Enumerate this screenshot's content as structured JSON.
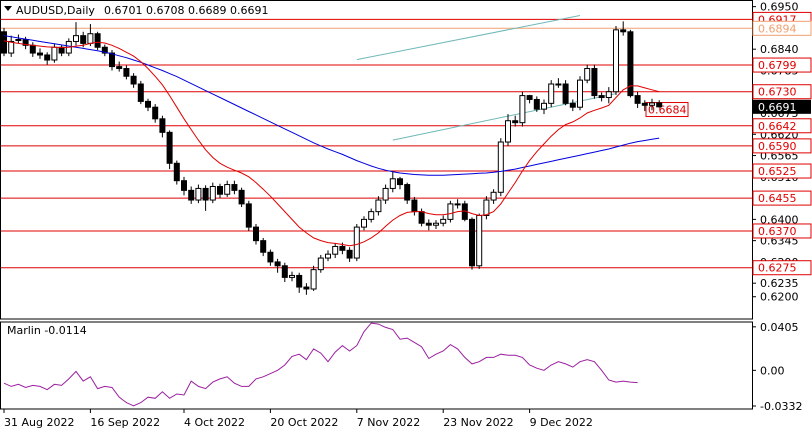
{
  "header": {
    "symbol_label": "AUDUSD,Daily",
    "ohlc_values": "0.6701 0.6708 0.6689 0.6691"
  },
  "colors": {
    "background": "#ffffff",
    "candle_bull": "#ffffff",
    "candle_bear": "#000000",
    "ma_fast": "#e00000",
    "ma_slow": "#0000dd",
    "channel": "#6fb8b8",
    "level_line": "#e00000",
    "price_box": "#000000",
    "oscillator": "#9b1fa0"
  },
  "chart_data": [
    {
      "type": "line",
      "title": "AUDUSD,Daily",
      "subtitle": "0.6701 0.6708 0.6689 0.6691",
      "ylim": [
        0.6145,
        0.6962
      ],
      "y_ticks": [
        "0.6950",
        "0.6895",
        "0.6840",
        "0.6785",
        "0.6730",
        "0.6675",
        "0.6620",
        "0.6565",
        "0.6510",
        "0.6455",
        "0.6400",
        "0.6345",
        "0.6290",
        "0.6235",
        "0.6200"
      ],
      "x_labels": [
        "31 Aug 2022",
        "16 Sep 2022",
        "4 Oct 2022",
        "20 Oct 2022",
        "7 Nov 2022",
        "23 Nov 2022",
        "9 Dec 2022"
      ],
      "x_label_index": [
        0,
        12,
        25,
        37,
        49,
        61,
        73
      ],
      "candles": {
        "open": [
          0.6885,
          0.683,
          0.6865,
          0.6865,
          0.685,
          0.683,
          0.6825,
          0.6812,
          0.6845,
          0.683,
          0.686,
          0.6875,
          0.6855,
          0.688,
          0.6845,
          0.683,
          0.6795,
          0.679,
          0.677,
          0.675,
          0.6705,
          0.669,
          0.666,
          0.6625,
          0.6545,
          0.65,
          0.6475,
          0.645,
          0.648,
          0.645,
          0.6485,
          0.6465,
          0.649,
          0.6475,
          0.644,
          0.638,
          0.6345,
          0.6315,
          0.629,
          0.628,
          0.625,
          0.6255,
          0.6225,
          0.622,
          0.627,
          0.63,
          0.631,
          0.633,
          0.632,
          0.63,
          0.638,
          0.64,
          0.642,
          0.645,
          0.648,
          0.6505,
          0.649,
          0.645,
          0.642,
          0.639,
          0.6385,
          0.639,
          0.64,
          0.644,
          0.644,
          0.64,
          0.628,
          0.641,
          0.645,
          0.647,
          0.66,
          0.6655,
          0.665,
          0.672,
          0.671,
          0.6685,
          0.67,
          0.675,
          0.675,
          0.67,
          0.669,
          0.676,
          0.679,
          0.672,
          0.6715,
          0.673,
          0.689,
          0.6885,
          0.672,
          0.67,
          0.6695,
          0.6701
        ],
        "close": [
          0.683,
          0.686,
          0.6865,
          0.685,
          0.683,
          0.6825,
          0.6812,
          0.6845,
          0.683,
          0.686,
          0.6875,
          0.6855,
          0.688,
          0.6845,
          0.683,
          0.6795,
          0.679,
          0.677,
          0.675,
          0.6705,
          0.669,
          0.666,
          0.6625,
          0.6545,
          0.65,
          0.6475,
          0.645,
          0.648,
          0.645,
          0.6485,
          0.6465,
          0.649,
          0.6475,
          0.644,
          0.638,
          0.6345,
          0.6315,
          0.629,
          0.628,
          0.625,
          0.6255,
          0.6225,
          0.622,
          0.627,
          0.63,
          0.631,
          0.633,
          0.632,
          0.63,
          0.638,
          0.64,
          0.642,
          0.645,
          0.648,
          0.6505,
          0.649,
          0.645,
          0.642,
          0.639,
          0.6385,
          0.639,
          0.64,
          0.644,
          0.644,
          0.64,
          0.628,
          0.641,
          0.645,
          0.647,
          0.66,
          0.6655,
          0.665,
          0.672,
          0.671,
          0.6685,
          0.67,
          0.675,
          0.675,
          0.67,
          0.669,
          0.676,
          0.679,
          0.672,
          0.6715,
          0.673,
          0.689,
          0.6885,
          0.672,
          0.67,
          0.6695,
          0.6701,
          0.6691
        ],
        "high": [
          0.6895,
          0.6875,
          0.6878,
          0.6872,
          0.6858,
          0.6842,
          0.6832,
          0.6855,
          0.685,
          0.6868,
          0.691,
          0.6885,
          0.6905,
          0.6885,
          0.6852,
          0.6838,
          0.6808,
          0.6798,
          0.6778,
          0.6758,
          0.6712,
          0.6698,
          0.6668,
          0.663,
          0.6552,
          0.651,
          0.6485,
          0.649,
          0.6488,
          0.6495,
          0.6492,
          0.65,
          0.65,
          0.6482,
          0.6448,
          0.6388,
          0.6352,
          0.6322,
          0.6298,
          0.6288,
          0.6265,
          0.6262,
          0.6235,
          0.628,
          0.6308,
          0.632,
          0.6338,
          0.634,
          0.6328,
          0.6388,
          0.6408,
          0.6428,
          0.646,
          0.649,
          0.6525,
          0.651,
          0.6495,
          0.6458,
          0.6428,
          0.64,
          0.6398,
          0.641,
          0.6448,
          0.6452,
          0.6448,
          0.6405,
          0.6415,
          0.646,
          0.6478,
          0.661,
          0.6672,
          0.6668,
          0.673,
          0.6722,
          0.6718,
          0.671,
          0.676,
          0.6765,
          0.676,
          0.671,
          0.677,
          0.68,
          0.68,
          0.6728,
          0.6742,
          0.69,
          0.6912,
          0.689,
          0.673,
          0.6708,
          0.6712,
          0.6708
        ],
        "low": [
          0.6822,
          0.682,
          0.6855,
          0.684,
          0.682,
          0.6815,
          0.68,
          0.6805,
          0.6822,
          0.6822,
          0.685,
          0.6845,
          0.6848,
          0.6838,
          0.6822,
          0.6785,
          0.6782,
          0.6762,
          0.674,
          0.6698,
          0.668,
          0.665,
          0.6612,
          0.653,
          0.649,
          0.6462,
          0.644,
          0.6442,
          0.6422,
          0.6442,
          0.6455,
          0.6458,
          0.6465,
          0.6432,
          0.637,
          0.6335,
          0.6305,
          0.628,
          0.6262,
          0.6238,
          0.624,
          0.621,
          0.6205,
          0.6215,
          0.6262,
          0.6292,
          0.63,
          0.631,
          0.629,
          0.6292,
          0.6372,
          0.6392,
          0.641,
          0.644,
          0.647,
          0.6478,
          0.644,
          0.641,
          0.6382,
          0.6372,
          0.6375,
          0.6382,
          0.6392,
          0.6428,
          0.6395,
          0.627,
          0.6272,
          0.64,
          0.644,
          0.646,
          0.659,
          0.664,
          0.664,
          0.67,
          0.6678,
          0.6672,
          0.669,
          0.674,
          0.6695,
          0.668,
          0.6682,
          0.6752,
          0.6712,
          0.6705,
          0.67,
          0.6722,
          0.6875,
          0.6715,
          0.6688,
          0.668,
          0.6682,
          0.6689
        ]
      },
      "ma_fast": [
        0.6862,
        0.6858,
        0.6855,
        0.6852,
        0.685,
        0.6848,
        0.6846,
        0.6845,
        0.6844,
        0.6845,
        0.6848,
        0.685,
        0.6855,
        0.6858,
        0.6856,
        0.685,
        0.6842,
        0.6832,
        0.6822,
        0.6808,
        0.679,
        0.677,
        0.6748,
        0.672,
        0.669,
        0.666,
        0.6632,
        0.6605,
        0.658,
        0.656,
        0.6545,
        0.6535,
        0.6527,
        0.652,
        0.651,
        0.6495,
        0.6478,
        0.646,
        0.644,
        0.642,
        0.64,
        0.638,
        0.6365,
        0.6352,
        0.6345,
        0.634,
        0.6338,
        0.6335,
        0.6332,
        0.6335,
        0.6342,
        0.6352,
        0.6365,
        0.6382,
        0.6398,
        0.641,
        0.6418,
        0.642,
        0.642,
        0.6415,
        0.6412,
        0.6412,
        0.6415,
        0.642,
        0.6422,
        0.6415,
        0.641,
        0.6412,
        0.642,
        0.644,
        0.6468,
        0.6495,
        0.6525,
        0.6552,
        0.6575,
        0.6595,
        0.6615,
        0.6632,
        0.6645,
        0.6652,
        0.6662,
        0.6675,
        0.6682,
        0.6688,
        0.6695,
        0.6715,
        0.6735,
        0.6745,
        0.6745,
        0.674,
        0.6735,
        0.673
      ],
      "ma_slow": [
        0.6875,
        0.6872,
        0.6869,
        0.6866,
        0.6863,
        0.686,
        0.6857,
        0.6854,
        0.6851,
        0.6848,
        0.6845,
        0.6842,
        0.6839,
        0.6836,
        0.6832,
        0.6828,
        0.6823,
        0.6818,
        0.6812,
        0.6806,
        0.6799,
        0.6792,
        0.6785,
        0.6777,
        0.6769,
        0.676,
        0.6751,
        0.6742,
        0.6733,
        0.6724,
        0.6715,
        0.6706,
        0.6697,
        0.6688,
        0.6679,
        0.667,
        0.6661,
        0.6652,
        0.6643,
        0.6634,
        0.6625,
        0.6616,
        0.6607,
        0.6598,
        0.659,
        0.6582,
        0.6575,
        0.6568,
        0.656,
        0.6552,
        0.6545,
        0.6538,
        0.6532,
        0.6527,
        0.6523,
        0.652,
        0.6518,
        0.6516,
        0.6515,
        0.6514,
        0.6514,
        0.6514,
        0.6515,
        0.6516,
        0.6517,
        0.6518,
        0.6519,
        0.652,
        0.6522,
        0.6524,
        0.6527,
        0.653,
        0.6534,
        0.6538,
        0.6542,
        0.6546,
        0.655,
        0.6554,
        0.6558,
        0.6562,
        0.6566,
        0.657,
        0.6574,
        0.6578,
        0.6582,
        0.6587,
        0.6592,
        0.6597,
        0.6601,
        0.6604,
        0.6607,
        0.661
      ],
      "channel_upper": {
        "i0": 49,
        "p0": 0.6813,
        "i1": 80,
        "p1": 0.6927
      },
      "channel_lower": {
        "i0": 54,
        "p0": 0.6605,
        "i1": 85,
        "p1": 0.6725
      },
      "levels": [
        {
          "label": "0.6917",
          "value": 0.6917,
          "color": "#e00000"
        },
        {
          "label": "0.6894",
          "value": 0.6894,
          "color": "#f0a070"
        },
        {
          "label": "0.6799",
          "value": 0.6799,
          "color": "#e00000"
        },
        {
          "label": "0.6730",
          "value": 0.673,
          "color": "#e00000"
        },
        {
          "label": "0.6642",
          "value": 0.6642,
          "color": "#e00000"
        },
        {
          "label": "0.6590",
          "value": 0.659,
          "color": "#e00000"
        },
        {
          "label": "0.6525",
          "value": 0.6525,
          "color": "#e00000"
        },
        {
          "label": "0.6455",
          "value": 0.6455,
          "color": "#e00000"
        },
        {
          "label": "0.6370",
          "value": 0.637,
          "color": "#e00000"
        },
        {
          "label": "0.6275",
          "value": 0.6275,
          "color": "#e00000"
        }
      ],
      "current_price": {
        "label": "0.6691",
        "value": 0.6691
      },
      "marker_price": {
        "label": "0.6684",
        "value": 0.6684
      }
    },
    {
      "type": "line",
      "title": "Marlin -0.0114",
      "name": "Marlin",
      "current_value": "-0.0114",
      "ylim": [
        -0.036,
        0.045
      ],
      "y_ticks": [
        "0.0405",
        "0.00",
        "-0.0332"
      ],
      "y_tick_values": [
        0.0405,
        0.0,
        -0.0332
      ],
      "values": [
        -0.012,
        -0.015,
        -0.013,
        -0.016,
        -0.014,
        -0.015,
        -0.018,
        -0.013,
        -0.014,
        -0.008,
        -0.001,
        -0.01,
        -0.006,
        -0.017,
        -0.015,
        -0.016,
        -0.025,
        -0.03,
        -0.033,
        -0.03,
        -0.025,
        -0.026,
        -0.02,
        -0.026,
        -0.022,
        -0.023,
        -0.01,
        -0.015,
        -0.017,
        -0.011,
        -0.008,
        -0.006,
        -0.012,
        -0.015,
        -0.015,
        -0.008,
        -0.006,
        -0.003,
        0.0,
        0.005,
        0.013,
        0.015,
        0.01,
        0.02,
        0.016,
        0.008,
        0.017,
        0.023,
        0.018,
        0.023,
        0.036,
        0.044,
        0.043,
        0.04,
        0.038,
        0.029,
        0.03,
        0.026,
        0.022,
        0.011,
        0.015,
        0.018,
        0.024,
        0.02,
        0.012,
        0.006,
        0.008,
        0.012,
        0.012,
        0.015,
        0.014,
        0.014,
        0.012,
        0.005,
        0.002,
        0.0,
        0.005,
        0.008,
        0.006,
        0.003,
        0.008,
        0.01,
        0.008,
        0.0,
        -0.009,
        -0.011,
        -0.01,
        -0.011,
        -0.0114
      ]
    }
  ]
}
